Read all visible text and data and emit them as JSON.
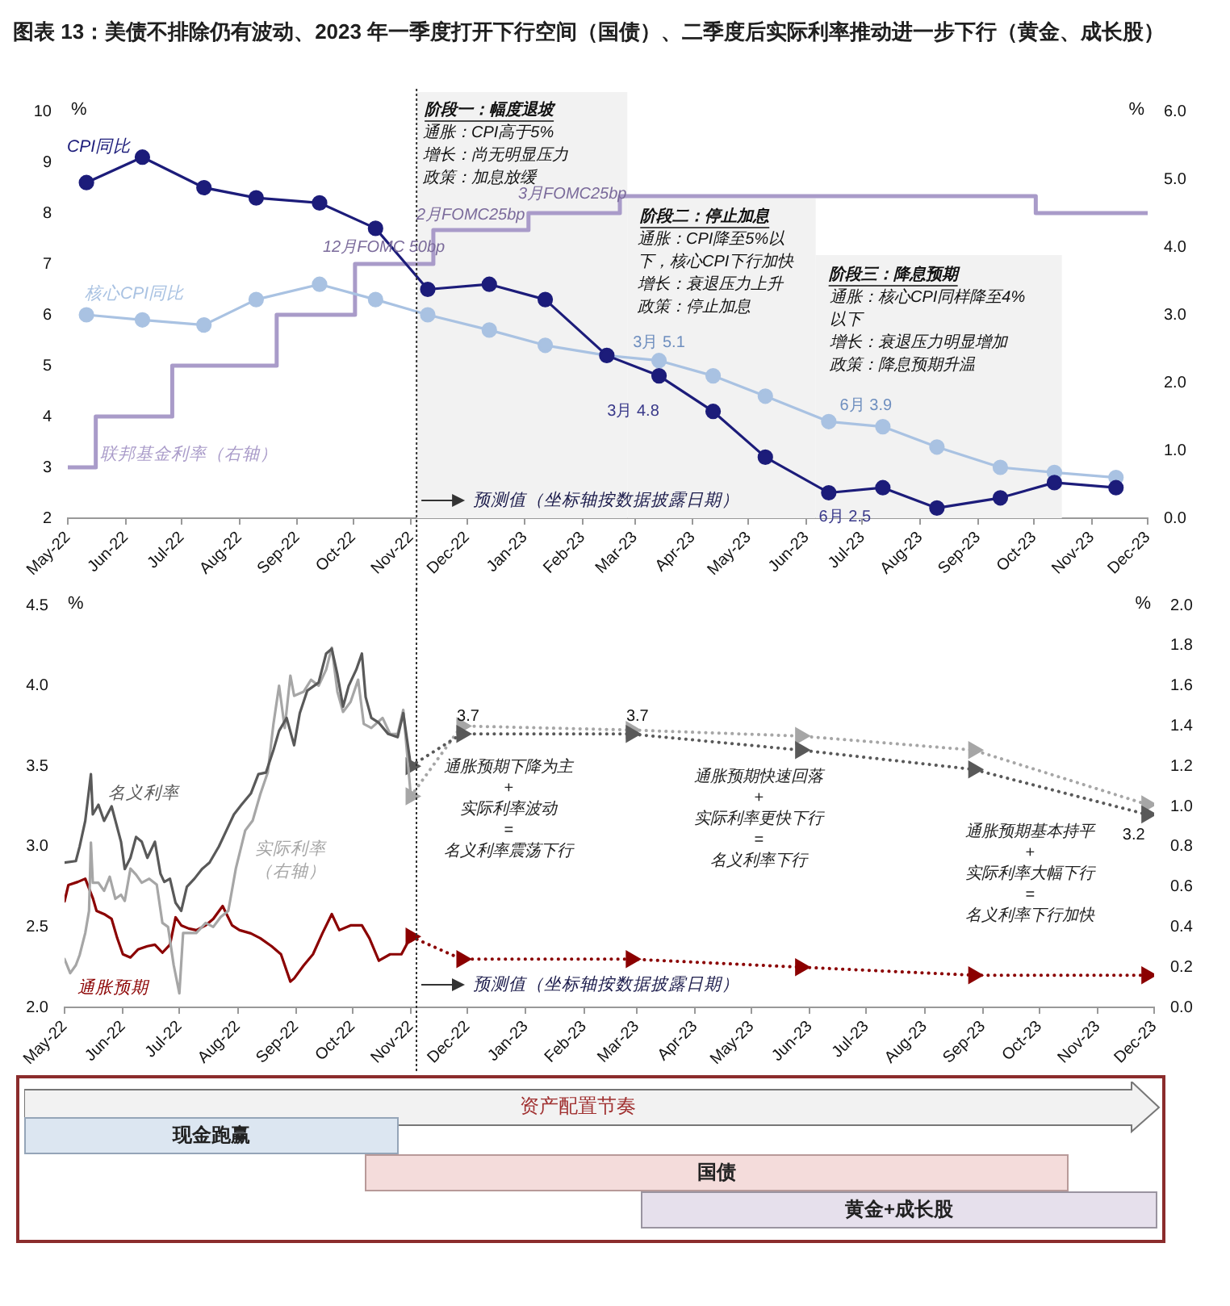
{
  "chart_data": [
    {
      "type": "line",
      "title": "图表 13：美债不排除仍有波动、2023 年一季度打开下行空间（国债）、二季度后实际利率推动进一步下行（黄金、成长股）",
      "ylabel": "%",
      "y2label": "%",
      "xlim": [
        "2022-05-01",
        "2023-12-01"
      ],
      "xticks": [
        {
          "value": "2022-05-01",
          "label": "May-22"
        },
        {
          "value": "2022-06-01",
          "label": "Jun-22"
        },
        {
          "value": "2022-07-01",
          "label": "Jul-22"
        },
        {
          "value": "2022-08-01",
          "label": "Aug-22"
        },
        {
          "value": "2022-09-01",
          "label": "Sep-22"
        },
        {
          "value": "2022-10-01",
          "label": "Oct-22"
        },
        {
          "value": "2022-11-01",
          "label": "Nov-22"
        },
        {
          "value": "2022-12-01",
          "label": "Dec-22"
        },
        {
          "value": "2023-01-01",
          "label": "Jan-23"
        },
        {
          "value": "2023-02-01",
          "label": "Feb-23"
        },
        {
          "value": "2023-03-01",
          "label": "Mar-23"
        },
        {
          "value": "2023-04-01",
          "label": "Apr-23"
        },
        {
          "value": "2023-05-01",
          "label": "May-23"
        },
        {
          "value": "2023-06-01",
          "label": "Jun-23"
        },
        {
          "value": "2023-07-01",
          "label": "Jul-23"
        },
        {
          "value": "2023-08-01",
          "label": "Aug-23"
        },
        {
          "value": "2023-09-01",
          "label": "Sep-23"
        },
        {
          "value": "2023-10-01",
          "label": "Oct-23"
        },
        {
          "value": "2023-11-01",
          "label": "Nov-23"
        },
        {
          "value": "2023-12-01",
          "label": "Dec-23"
        }
      ],
      "ylim": [
        2,
        10
      ],
      "yticks": [
        2,
        3,
        4,
        5,
        6,
        7,
        8,
        9,
        10
      ],
      "y2lim": [
        0,
        6
      ],
      "y2ticks": [
        {
          "value": 0,
          "label": "0.0"
        },
        {
          "value": 1,
          "label": "1.0"
        },
        {
          "value": 2,
          "label": "2.0"
        },
        {
          "value": 3,
          "label": "3.0"
        },
        {
          "value": 4,
          "label": "4.0"
        },
        {
          "value": 5,
          "label": "5.0"
        },
        {
          "value": 6,
          "label": "6.0"
        }
      ],
      "series": [
        {
          "name": "CPI同比",
          "color": "#1c1c7a",
          "marker": "circle",
          "x": [
            "2022-05-11",
            "2022-06-10",
            "2022-07-13",
            "2022-08-10",
            "2022-09-13",
            "2022-10-13",
            "2022-11-10",
            "2022-12-13",
            "2023-01-12",
            "2023-02-14",
            "2023-03-14",
            "2023-04-12",
            "2023-05-10",
            "2023-06-13",
            "2023-07-12",
            "2023-08-10",
            "2023-09-13",
            "2023-10-12",
            "2023-11-14"
          ],
          "values": [
            8.6,
            9.1,
            8.5,
            8.3,
            8.2,
            7.7,
            6.5,
            6.6,
            6.3,
            5.2,
            4.8,
            4.1,
            3.2,
            2.5,
            2.6,
            2.2,
            2.4,
            2.7,
            2.6
          ]
        },
        {
          "name": "核心CPI同比",
          "color": "#a9c2e2",
          "marker": "circle",
          "x": [
            "2022-05-11",
            "2022-06-10",
            "2022-07-13",
            "2022-08-10",
            "2022-09-13",
            "2022-10-13",
            "2022-11-10",
            "2022-12-13",
            "2023-01-12",
            "2023-02-14",
            "2023-03-14",
            "2023-04-12",
            "2023-05-10",
            "2023-06-13",
            "2023-07-12",
            "2023-08-10",
            "2023-09-13",
            "2023-10-12",
            "2023-11-14"
          ],
          "values": [
            6.0,
            5.9,
            5.8,
            6.3,
            6.6,
            6.3,
            6.0,
            5.7,
            5.4,
            5.2,
            5.1,
            4.8,
            4.4,
            3.9,
            3.8,
            3.4,
            3.0,
            2.9,
            2.8
          ]
        },
        {
          "name": "联邦基金利率（右轴）",
          "type": "step",
          "axis": "y2",
          "color": "#a99bc9",
          "marker": "none",
          "x": [
            "2022-05-01",
            "2022-05-16",
            "2022-06-26",
            "2022-08-21",
            "2022-10-02",
            "2022-11-13",
            "2023-01-03",
            "2023-02-21",
            "2023-10-02",
            "2023-12-01"
          ],
          "values": [
            0.75,
            1.5,
            2.25,
            3.0,
            3.75,
            4.25,
            4.5,
            4.75,
            4.5,
            4.5
          ]
        }
      ],
      "bands": [
        {
          "axis": "x",
          "from": "2022-11-04",
          "to": "2023-02-25",
          "color": "#f2f2f2",
          "label": "阶段一：幅度退坡"
        },
        {
          "axis": "x",
          "from": "2023-02-25",
          "to": "2023-06-06",
          "color": "#f2f2f2",
          "label": "阶段二：停止加息"
        },
        {
          "axis": "x",
          "from": "2023-06-06",
          "to": "2023-10-16",
          "color": "#f2f2f2",
          "label": "阶段三：降息预期"
        }
      ],
      "ref_lines": [
        {
          "axis": "x",
          "value": "2022-11-04",
          "line_style": "dotted",
          "color": "#333333",
          "label": "预测值（坐标轴按数据披露日期）"
        }
      ],
      "annotations": [
        "12月FOMC 50bp",
        "2月FOMC25bp",
        "3月FOMC25bp",
        {
          "text": "3月 5.1",
          "x": "2023-03-14",
          "y": 5.1
        },
        {
          "text": "3月 4.8",
          "x": "2023-03-14",
          "y": 4.8
        },
        {
          "text": "6月 3.9",
          "x": "2023-06-13",
          "y": 3.9
        },
        {
          "text": "6月 2.5",
          "x": "2023-06-13",
          "y": 2.5
        },
        "通胀：CPI高于5%",
        "增长：尚无明显压力",
        "政策：加息放缓",
        "通胀：CPI降至5%以",
        "下，核心CPI下行加快",
        "增长：衰退压力上升",
        "政策：停止加息",
        "通胀：核心CPI同样降至4%",
        "以下",
        "增长：衰退压力明显增加",
        "政策：降息预期升温"
      ]
    },
    {
      "type": "line",
      "ylabel": "%",
      "y2label": "%",
      "xlim": [
        "2022-05-01",
        "2023-12-01"
      ],
      "xticks": [
        {
          "value": "2022-05-01",
          "label": "May-22"
        },
        {
          "value": "2022-06-01",
          "label": "Jun-22"
        },
        {
          "value": "2022-07-01",
          "label": "Jul-22"
        },
        {
          "value": "2022-08-01",
          "label": "Aug-22"
        },
        {
          "value": "2022-09-01",
          "label": "Sep-22"
        },
        {
          "value": "2022-10-01",
          "label": "Oct-22"
        },
        {
          "value": "2022-11-01",
          "label": "Nov-22"
        },
        {
          "value": "2022-12-01",
          "label": "Dec-22"
        },
        {
          "value": "2023-01-01",
          "label": "Jan-23"
        },
        {
          "value": "2023-02-01",
          "label": "Feb-23"
        },
        {
          "value": "2023-03-01",
          "label": "Mar-23"
        },
        {
          "value": "2023-04-01",
          "label": "Apr-23"
        },
        {
          "value": "2023-05-01",
          "label": "May-23"
        },
        {
          "value": "2023-06-01",
          "label": "Jun-23"
        },
        {
          "value": "2023-07-01",
          "label": "Jul-23"
        },
        {
          "value": "2023-08-01",
          "label": "Aug-23"
        },
        {
          "value": "2023-09-01",
          "label": "Sep-23"
        },
        {
          "value": "2023-10-01",
          "label": "Oct-23"
        },
        {
          "value": "2023-11-01",
          "label": "Nov-23"
        },
        {
          "value": "2023-12-01",
          "label": "Dec-23"
        }
      ],
      "ylim": [
        2,
        4.5
      ],
      "yticks": [
        {
          "value": 2,
          "label": "2.0"
        },
        {
          "value": 2.5,
          "label": "2.5"
        },
        {
          "value": 3,
          "label": "3.0"
        },
        {
          "value": 3.5,
          "label": "3.5"
        },
        {
          "value": 4,
          "label": "4.0"
        },
        {
          "value": 4.5,
          "label": "4.5"
        }
      ],
      "y2lim": [
        0,
        2
      ],
      "y2ticks": [
        {
          "value": 0,
          "label": "0.0"
        },
        {
          "value": 0.2,
          "label": "0.2"
        },
        {
          "value": 0.4,
          "label": "0.4"
        },
        {
          "value": 0.6,
          "label": "0.6"
        },
        {
          "value": 0.8,
          "label": "0.8"
        },
        {
          "value": 1,
          "label": "1.0"
        },
        {
          "value": 1.2,
          "label": "1.2"
        },
        {
          "value": 1.4,
          "label": "1.4"
        },
        {
          "value": 1.6,
          "label": "1.6"
        },
        {
          "value": 1.8,
          "label": "1.8"
        },
        {
          "value": 2,
          "label": "2.0"
        }
      ],
      "series": [
        {
          "name": "名义利率",
          "color": "#595959",
          "marker": "none",
          "x": [
            "2022-05-01",
            "2022-05-07",
            "2022-05-09",
            "2022-05-12",
            "2022-05-15",
            "2022-05-16",
            "2022-05-19",
            "2022-05-22",
            "2022-05-26",
            "2022-05-31",
            "2022-06-02",
            "2022-06-05",
            "2022-06-08",
            "2022-06-11",
            "2022-06-14",
            "2022-06-18",
            "2022-06-21",
            "2022-06-23",
            "2022-06-26",
            "2022-06-29",
            "2022-07-02",
            "2022-07-05",
            "2022-07-09",
            "2022-07-13",
            "2022-07-17",
            "2022-07-22",
            "2022-07-26",
            "2022-07-30",
            "2022-08-03",
            "2022-08-08",
            "2022-08-12",
            "2022-08-16",
            "2022-08-20",
            "2022-08-23",
            "2022-08-27",
            "2022-08-31",
            "2022-09-03",
            "2022-09-07",
            "2022-09-13",
            "2022-09-17",
            "2022-09-20",
            "2022-09-23",
            "2022-09-26",
            "2022-09-29",
            "2022-10-03",
            "2022-10-06",
            "2022-10-08",
            "2022-10-11",
            "2022-10-15",
            "2022-10-20",
            "2022-10-25",
            "2022-10-28",
            "2022-11-01"
          ],
          "values": [
            2.9,
            2.91,
            3.0,
            3.16,
            3.45,
            3.2,
            3.26,
            3.16,
            3.25,
            3.03,
            2.86,
            2.93,
            3.06,
            3.03,
            2.93,
            3.03,
            2.83,
            2.78,
            2.8,
            2.65,
            2.6,
            2.75,
            2.8,
            2.86,
            2.9,
            3.0,
            3.1,
            3.2,
            3.26,
            3.33,
            3.45,
            3.46,
            3.6,
            3.72,
            3.8,
            3.63,
            3.83,
            3.97,
            4.02,
            4.2,
            4.23,
            4.07,
            3.87,
            4.0,
            4.1,
            4.2,
            3.93,
            3.8,
            3.77,
            3.7,
            3.68,
            3.83,
            3.5
          ]
        },
        {
          "name": "实际利率（右轴）",
          "axis": "y2",
          "color": "#a6a6a6",
          "marker": "none",
          "x": [
            "2022-05-01",
            "2022-05-04",
            "2022-05-07",
            "2022-05-09",
            "2022-05-12",
            "2022-05-14",
            "2022-05-15",
            "2022-05-16",
            "2022-05-19",
            "2022-05-22",
            "2022-05-25",
            "2022-05-28",
            "2022-05-31",
            "2022-06-02",
            "2022-06-05",
            "2022-06-08",
            "2022-06-11",
            "2022-06-15",
            "2022-06-19",
            "2022-06-22",
            "2022-06-25",
            "2022-06-28",
            "2022-07-01",
            "2022-07-03",
            "2022-07-06",
            "2022-07-10",
            "2022-07-15",
            "2022-07-19",
            "2022-07-23",
            "2022-07-27",
            "2022-07-31",
            "2022-08-05",
            "2022-08-09",
            "2022-08-13",
            "2022-08-17",
            "2022-08-20",
            "2022-08-23",
            "2022-08-26",
            "2022-08-29",
            "2022-08-31",
            "2022-09-05",
            "2022-09-09",
            "2022-09-13",
            "2022-09-17",
            "2022-09-20",
            "2022-09-23",
            "2022-09-26",
            "2022-09-30",
            "2022-10-04",
            "2022-10-07",
            "2022-10-11",
            "2022-10-17",
            "2022-10-21",
            "2022-10-25",
            "2022-10-28",
            "2022-11-01"
          ],
          "values": [
            0.24,
            0.17,
            0.21,
            0.26,
            0.37,
            0.48,
            0.82,
            0.62,
            0.62,
            0.58,
            0.65,
            0.54,
            0.56,
            0.53,
            0.69,
            0.66,
            0.62,
            0.64,
            0.61,
            0.42,
            0.4,
            0.21,
            0.07,
            0.37,
            0.37,
            0.37,
            0.42,
            0.4,
            0.45,
            0.48,
            0.69,
            0.88,
            0.93,
            1.06,
            1.17,
            1.41,
            1.6,
            1.39,
            1.65,
            1.55,
            1.57,
            1.63,
            1.6,
            1.68,
            1.79,
            1.57,
            1.47,
            1.52,
            1.63,
            1.41,
            1.39,
            1.44,
            1.36,
            1.36,
            1.48,
            1.05
          ]
        },
        {
          "name": "通胀预期",
          "color": "#8b0000",
          "marker": "none",
          "x": [
            "2022-05-01",
            "2022-05-03",
            "2022-05-08",
            "2022-05-12",
            "2022-05-16",
            "2022-05-18",
            "2022-05-22",
            "2022-05-26",
            "2022-05-29",
            "2022-06-01",
            "2022-06-05",
            "2022-06-09",
            "2022-06-14",
            "2022-06-18",
            "2022-06-22",
            "2022-06-26",
            "2022-06-29",
            "2022-07-02",
            "2022-07-06",
            "2022-07-10",
            "2022-07-15",
            "2022-07-19",
            "2022-07-24",
            "2022-07-29",
            "2022-08-02",
            "2022-08-08",
            "2022-08-13",
            "2022-08-19",
            "2022-08-24",
            "2022-08-29",
            "2022-08-31",
            "2022-09-05",
            "2022-09-10",
            "2022-09-15",
            "2022-09-20",
            "2022-09-24",
            "2022-09-30",
            "2022-10-06",
            "2022-10-10",
            "2022-10-15",
            "2022-10-21",
            "2022-10-27",
            "2022-11-01"
          ],
          "values": [
            2.66,
            2.76,
            2.78,
            2.8,
            2.68,
            2.6,
            2.58,
            2.55,
            2.43,
            2.33,
            2.31,
            2.36,
            2.38,
            2.39,
            2.34,
            2.39,
            2.56,
            2.51,
            2.49,
            2.48,
            2.51,
            2.55,
            2.63,
            2.51,
            2.48,
            2.46,
            2.43,
            2.38,
            2.33,
            2.16,
            2.18,
            2.26,
            2.33,
            2.46,
            2.58,
            2.48,
            2.51,
            2.51,
            2.43,
            2.29,
            2.33,
            2.33,
            2.44
          ]
        },
        {
          "color": "#595959",
          "marker": "triangle",
          "line_style": "dotted",
          "x": [
            "2022-11-01",
            "2022-11-28",
            "2023-02-26",
            "2023-05-27",
            "2023-08-27",
            "2023-11-27"
          ],
          "values": [
            3.5,
            3.7,
            3.7,
            3.6,
            3.48,
            3.2
          ],
          "value_labels": [
            null,
            "3.7",
            "3.7",
            null,
            null,
            "3.2"
          ]
        },
        {
          "axis": "y2",
          "color": "#a6a6a6",
          "marker": "triangle",
          "line_style": "dotted",
          "x": [
            "2022-11-01",
            "2022-11-28",
            "2023-02-26",
            "2023-05-27",
            "2023-08-27",
            "2023-11-27"
          ],
          "values": [
            1.05,
            1.4,
            1.38,
            1.35,
            1.28,
            1.01
          ]
        },
        {
          "color": "#8b0000",
          "marker": "triangle",
          "line_style": "dotted",
          "x": [
            "2022-11-01",
            "2022-11-28",
            "2023-02-26",
            "2023-05-27",
            "2023-08-27",
            "2023-11-27"
          ],
          "values": [
            2.44,
            2.3,
            2.3,
            2.25,
            2.2,
            2.2
          ]
        }
      ],
      "ref_lines": [
        {
          "axis": "x",
          "value": "2022-11-04",
          "line_style": "dotted",
          "color": "#333333",
          "label": "预测值（坐标轴按数据披露日期）"
        }
      ],
      "annotations": [
        "通胀预期下降为主\n+\n实际利率波动\n=\n名义利率震荡下行",
        "通胀预期快速回落\n+\n实际利率更快下行\n=\n名义利率下行",
        "通胀预期基本持平\n+\n实际利率大幅下行\n=\n名义利率下行加快"
      ]
    },
    {
      "type": "other",
      "annotations": [
        "资产配置节奏",
        "现金跑赢",
        "国债",
        "黄金+成长股"
      ]
    }
  ]
}
